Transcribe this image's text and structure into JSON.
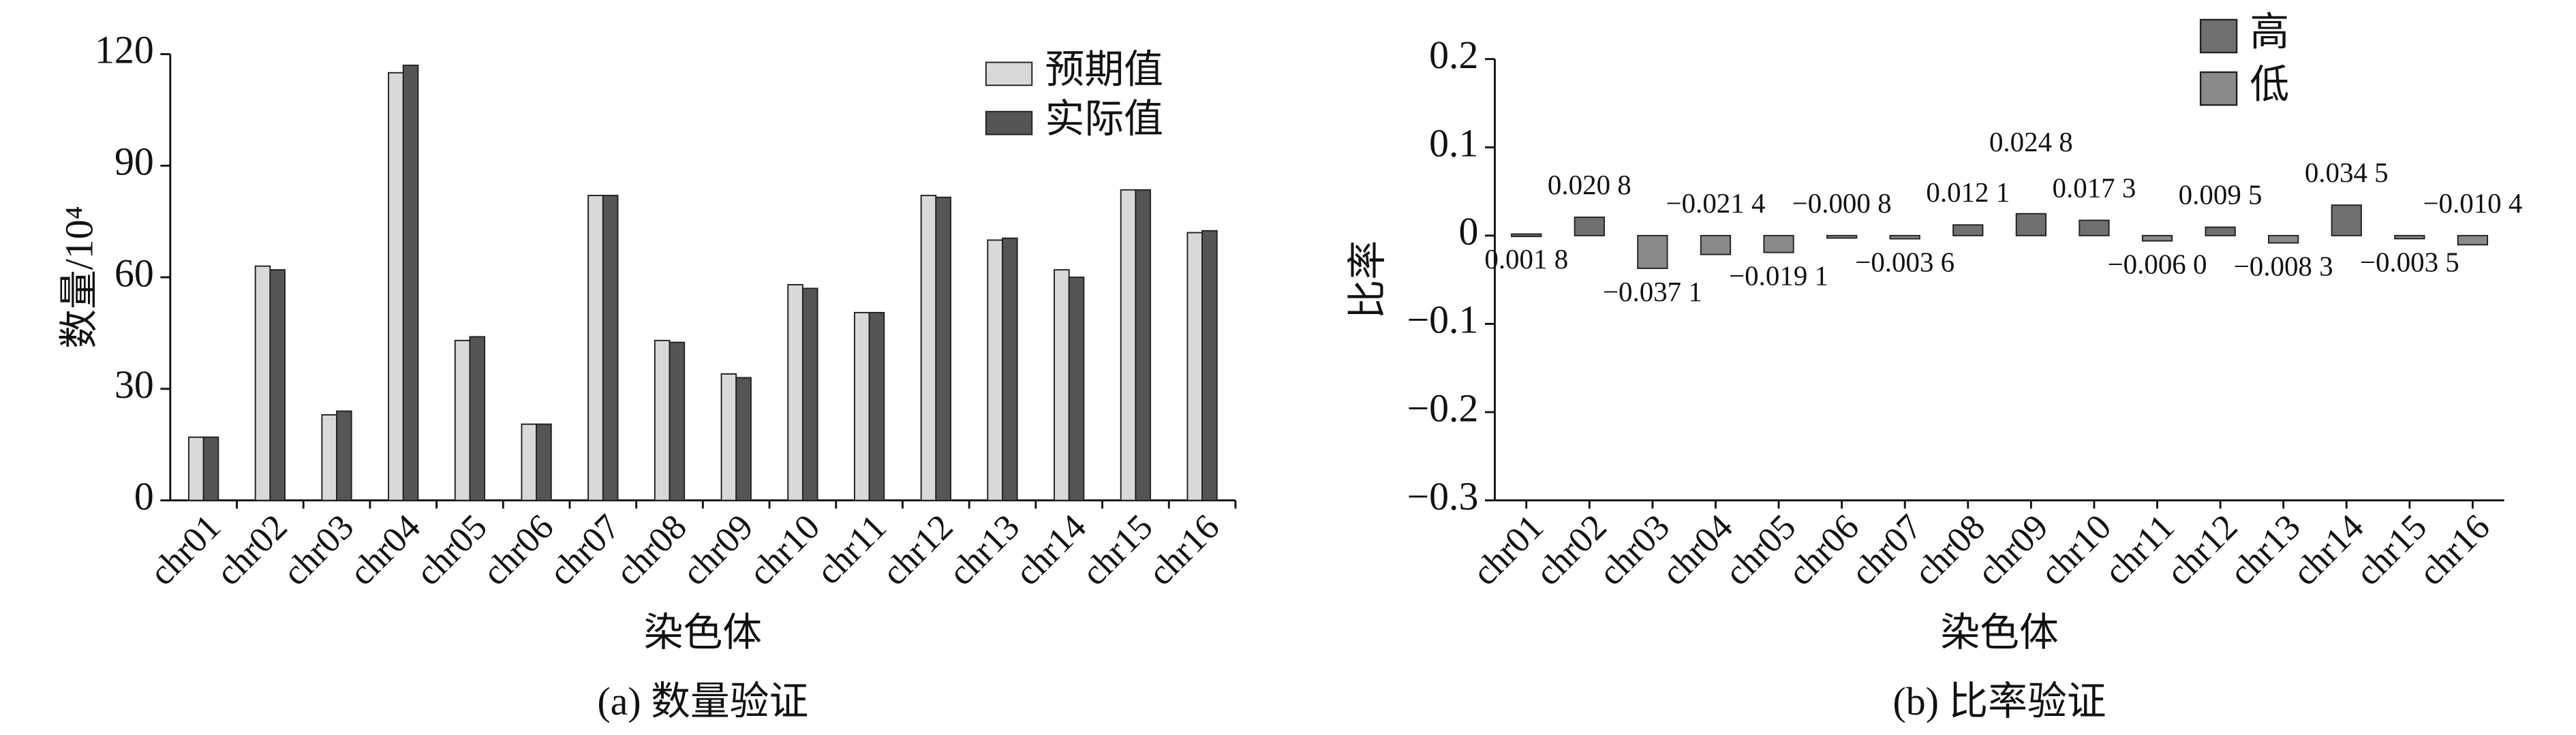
{
  "chart_data": [
    {
      "type": "bar",
      "ylabel": "数量/10⁴",
      "xlabel": "染色体",
      "caption": "(a) 数量验证",
      "categories": [
        "chr01",
        "chr02",
        "chr03",
        "chr04",
        "chr05",
        "chr06",
        "chr07",
        "chr08",
        "chr09",
        "chr10",
        "chr11",
        "chr12",
        "chr13",
        "chr14",
        "chr15",
        "chr16"
      ],
      "series": [
        {
          "name": "预期值",
          "color": "#d9d9d9",
          "values": [
            17,
            63,
            23,
            115,
            43,
            20.5,
            82,
            43,
            34,
            58,
            50.5,
            82,
            70,
            62,
            83.5,
            72
          ]
        },
        {
          "name": "实际值",
          "color": "#555555",
          "values": [
            17,
            62,
            24,
            117,
            44,
            20.5,
            82,
            42.5,
            33,
            57,
            50.5,
            81.5,
            70.5,
            60,
            83.5,
            72.5
          ]
        }
      ],
      "ylim": [
        0,
        120
      ],
      "yticks": [
        0,
        30,
        60,
        90,
        120
      ]
    },
    {
      "type": "bar",
      "ylabel": "比率",
      "xlabel": "染色体",
      "caption": "(b) 比率验证",
      "categories": [
        "chr01",
        "chr02",
        "chr03",
        "chr04",
        "chr05",
        "chr06",
        "chr07",
        "chr08",
        "chr09",
        "chr10",
        "chr11",
        "chr12",
        "chr13",
        "chr14",
        "chr15",
        "chr16"
      ],
      "legend": [
        {
          "name": "高",
          "color": "#707070"
        },
        {
          "name": "低",
          "color": "#8a8a8a"
        }
      ],
      "values": [
        0.0018,
        0.0208,
        -0.0371,
        -0.0214,
        -0.0191,
        -0.0008,
        -0.0036,
        0.0121,
        0.0248,
        0.0173,
        -0.006,
        0.0095,
        -0.0083,
        0.0345,
        -0.0035,
        -0.0104
      ],
      "value_labels": [
        "0.001 8",
        "0.020 8",
        "−0.037 1",
        "−0.021 4",
        "−0.019 1",
        "−0.000 8",
        "−0.003 6",
        "0.012 1",
        "0.024 8",
        "0.017 3",
        "−0.006 0",
        "0.009 5",
        "−0.008 3",
        "0.034 5",
        "−0.003 5",
        "−0.010 4"
      ],
      "ylim": [
        -0.3,
        0.2
      ],
      "yticks": [
        {
          "value": -0.3,
          "label": "−0.3"
        },
        {
          "value": -0.2,
          "label": "−0.2"
        },
        {
          "value": -0.1,
          "label": "−0.1"
        },
        0,
        0.1,
        0.2
      ]
    }
  ]
}
